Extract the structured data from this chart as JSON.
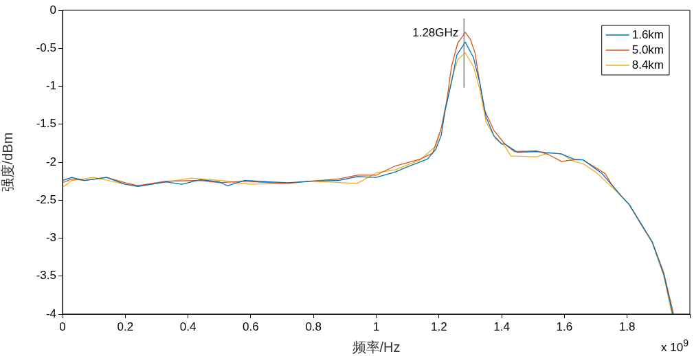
{
  "chart_data": {
    "type": "line",
    "xlabel": "频率/Hz",
    "ylabel": "强度/dBm",
    "xlim": [
      0,
      2
    ],
    "xticks": [
      0,
      0.2,
      0.4,
      0.6,
      0.8,
      1,
      1.2,
      1.4,
      1.6,
      1.8,
      {
        "value": 2,
        "label": null
      }
    ],
    "ylim": [
      -4,
      0
    ],
    "yticks": [
      -4,
      -3.5,
      -3,
      -2.5,
      -2,
      -1.5,
      -1,
      -0.5,
      0
    ],
    "grid": false,
    "legend": "top right",
    "marker": "none",
    "line_style": "solid",
    "annotations": [
      "x 10$^{9}$"
    ],
    "ref_lines": [
      {
        "axis": "x",
        "value": 1.28,
        "label": "1.28GHz",
        "color": "#808080"
      }
    ],
    "series": [
      {
        "name": "1.6km",
        "color": "#0072bd",
        "x": [
          0,
          0.03,
          0.07,
          0.14,
          0.2,
          0.24,
          0.33,
          0.38,
          0.44,
          0.5,
          0.525,
          0.58,
          0.66,
          0.72,
          0.79,
          0.88,
          0.94,
          1.0,
          1.06,
          1.1,
          1.163,
          1.19,
          1.207,
          1.22,
          1.24,
          1.257,
          1.284,
          1.31,
          1.33,
          1.35,
          1.375,
          1.4,
          1.41,
          1.45,
          1.51,
          1.59,
          1.63,
          1.66,
          1.72,
          1.78,
          1.807,
          1.85,
          1.88,
          1.917,
          1.945
        ],
        "values": [
          -2.24,
          -2.2,
          -2.24,
          -2.2,
          -2.29,
          -2.32,
          -2.26,
          -2.29,
          -2.23,
          -2.26,
          -2.31,
          -2.24,
          -2.26,
          -2.27,
          -2.25,
          -2.24,
          -2.19,
          -2.2,
          -2.13,
          -2.06,
          -1.96,
          -1.83,
          -1.65,
          -1.31,
          -0.95,
          -0.59,
          -0.42,
          -0.62,
          -0.95,
          -1.4,
          -1.65,
          -1.76,
          -1.76,
          -1.87,
          -1.86,
          -1.89,
          -1.96,
          -1.97,
          -2.15,
          -2.44,
          -2.56,
          -2.85,
          -3.05,
          -3.48,
          -4
        ]
      },
      {
        "name": "5.0km",
        "color": "#d95319",
        "x": [
          0,
          0.03,
          0.07,
          0.14,
          0.2,
          0.24,
          0.33,
          0.44,
          0.5,
          0.58,
          0.66,
          0.72,
          0.79,
          0.88,
          0.94,
          1.0,
          1.06,
          1.14,
          1.18,
          1.207,
          1.225,
          1.24,
          1.26,
          1.284,
          1.3,
          1.315,
          1.33,
          1.345,
          1.375,
          1.41,
          1.44,
          1.51,
          1.55,
          1.59,
          1.63,
          1.66,
          1.73,
          1.75,
          1.78,
          1.807,
          1.85,
          1.88,
          1.917,
          1.948
        ],
        "values": [
          -2.27,
          -2.22,
          -2.24,
          -2.2,
          -2.27,
          -2.31,
          -2.25,
          -2.24,
          -2.27,
          -2.25,
          -2.27,
          -2.28,
          -2.25,
          -2.22,
          -2.17,
          -2.17,
          -2.05,
          -1.96,
          -1.88,
          -1.56,
          -1.19,
          -0.74,
          -0.43,
          -0.29,
          -0.38,
          -0.56,
          -0.95,
          -1.31,
          -1.58,
          -1.76,
          -1.86,
          -1.85,
          -1.9,
          -1.99,
          -1.97,
          -1.97,
          -2.15,
          -2.29,
          -2.44,
          -2.56,
          -2.85,
          -3.05,
          -3.46,
          -4
        ]
      },
      {
        "name": "8.4km",
        "color": "#edb120",
        "x": [
          0,
          0.03,
          0.1,
          0.2,
          0.25,
          0.41,
          0.5,
          0.6,
          0.7,
          0.8,
          0.94,
          1.0,
          1.06,
          1.14,
          1.19,
          1.213,
          1.24,
          1.26,
          1.284,
          1.31,
          1.33,
          1.35,
          1.38,
          1.41,
          1.43,
          1.45,
          1.51,
          1.55,
          1.59,
          1.63,
          1.66,
          1.7,
          1.78,
          1.807,
          1.85,
          1.88,
          1.917,
          1.943
        ],
        "values": [
          -2.33,
          -2.24,
          -2.2,
          -2.29,
          -2.31,
          -2.21,
          -2.24,
          -2.29,
          -2.28,
          -2.25,
          -2.28,
          -2.14,
          -2.1,
          -1.97,
          -1.79,
          -1.47,
          -0.92,
          -0.65,
          -0.56,
          -0.74,
          -1.04,
          -1.47,
          -1.69,
          -1.79,
          -1.92,
          -1.92,
          -1.93,
          -1.88,
          -1.89,
          -1.99,
          -2.02,
          -2.13,
          -2.44,
          -2.56,
          -2.86,
          -3.06,
          -3.5,
          -4
        ]
      }
    ]
  }
}
